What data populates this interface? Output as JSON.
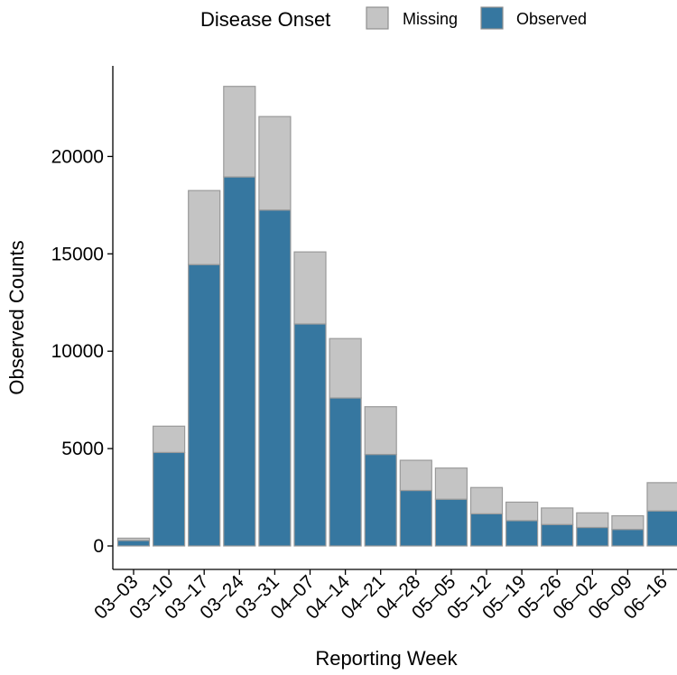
{
  "chart_data": {
    "type": "bar",
    "stacked": true,
    "title": "",
    "xlabel": "Reporting Week",
    "ylabel": "Observed Counts",
    "ylim": [
      0,
      24500
    ],
    "yticks": [
      0,
      5000,
      10000,
      15000,
      20000
    ],
    "grid": false,
    "legend": {
      "title": "Disease Onset",
      "position": "top",
      "entries": [
        {
          "name": "Missing",
          "color": "#c4c4c4"
        },
        {
          "name": "Observed",
          "color": "#3677a0"
        }
      ]
    },
    "categories": [
      "03–03",
      "03–10",
      "03–17",
      "03–24",
      "03–31",
      "04–07",
      "04–14",
      "04–21",
      "04–28",
      "05–05",
      "05–12",
      "05–19",
      "05–26",
      "06–02",
      "06–09",
      "06–16"
    ],
    "series": [
      {
        "name": "Observed",
        "color": "#3677a0",
        "values": [
          280,
          4800,
          14450,
          18950,
          17250,
          11400,
          7600,
          4700,
          2850,
          2400,
          1650,
          1300,
          1100,
          950,
          850,
          1800
        ]
      },
      {
        "name": "Missing",
        "color": "#c4c4c4",
        "values": [
          120,
          1350,
          3800,
          4650,
          4800,
          3700,
          3050,
          2450,
          1550,
          1600,
          1350,
          950,
          850,
          750,
          700,
          1450
        ]
      }
    ]
  }
}
